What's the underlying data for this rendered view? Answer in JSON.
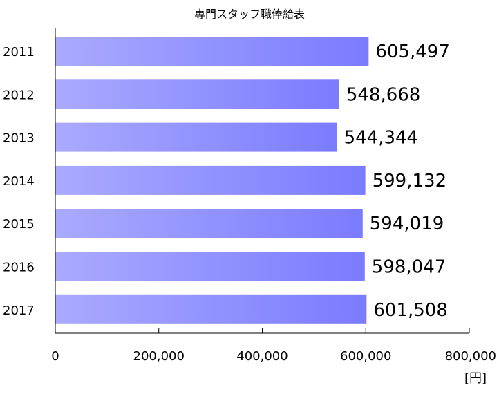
{
  "chart_data": {
    "type": "bar",
    "orientation": "horizontal",
    "title": "専門スタッフ職俸給表",
    "categories": [
      "2011",
      "2012",
      "2013",
      "2014",
      "2015",
      "2016",
      "2017"
    ],
    "values": [
      605497,
      548668,
      544344,
      599132,
      594019,
      598047,
      601508
    ],
    "value_labels": [
      "605,497",
      "548,668",
      "544,344",
      "599,132",
      "594,019",
      "598,047",
      "601,508"
    ],
    "xlim": [
      0,
      800000
    ],
    "xticks": [
      0,
      200000,
      400000,
      600000,
      800000
    ],
    "xtick_labels": [
      "0",
      "200,000",
      "400,000",
      "600,000",
      "800,000"
    ],
    "unit": "[円]",
    "grid": false,
    "bar_gradient": [
      "#aaaaff",
      "#7b7bff"
    ]
  }
}
